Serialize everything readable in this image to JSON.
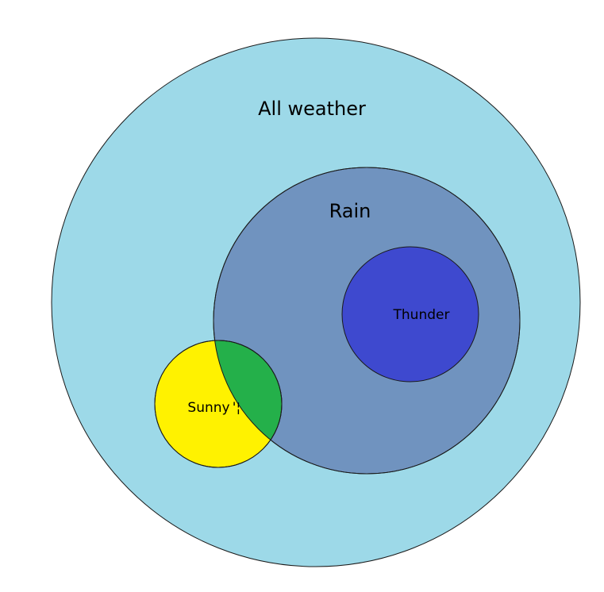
{
  "diagram": {
    "labels": {
      "all_weather": "All weather",
      "rain": "Rain",
      "thunder": "Thunder",
      "sunny": "Sunny"
    },
    "colors": {
      "all_weather": "#9DD9E8",
      "rain": "#7093BF",
      "thunder": "#3E49CF",
      "sunny": "#FFF200",
      "sunny_and_rain": "#24B04A"
    },
    "overlap_mark": "'¦"
  }
}
